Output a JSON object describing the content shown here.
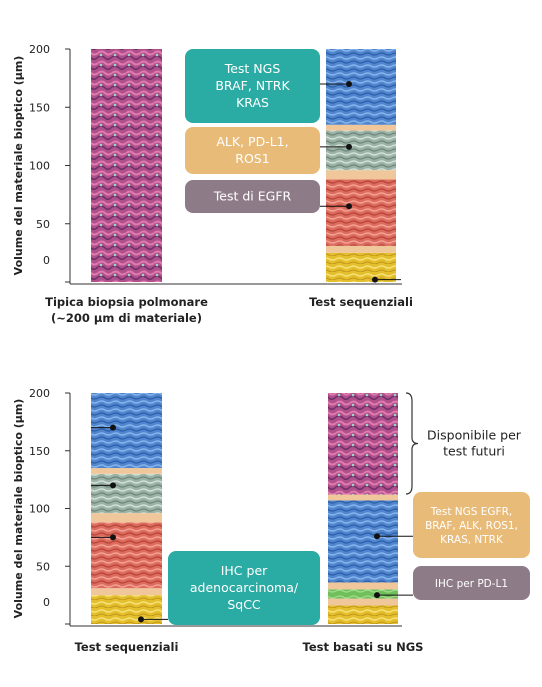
{
  "chart_data": [
    {
      "type": "bar",
      "ylabel": "Volume del materiale bioptico (μm)",
      "ylim": [
        0,
        200
      ],
      "yticks": [
        0,
        50,
        100,
        150,
        200
      ],
      "categories": [
        "Tipica biopsia polmonare\n(~200 μm di materiale)",
        "Test sequenziali"
      ],
      "stacks": [
        {
          "category": "Tipica biopsia polmonare\n(~200 μm di materiale)",
          "segments": [
            {
              "from": 0,
              "to": 200,
              "tissue": "tumor-tissue",
              "color": "#b0508a"
            }
          ]
        },
        {
          "category": "Test sequenziali",
          "segments": [
            {
              "from": 0,
              "to": 25,
              "tissue": "yellow",
              "color": "#e4bf2c"
            },
            {
              "from": 25,
              "to": 31,
              "tissue": "spacer",
              "color": "#f0c79a"
            },
            {
              "from": 31,
              "to": 88,
              "tissue": "red",
              "color": "#dd6b5e"
            },
            {
              "from": 88,
              "to": 96,
              "tissue": "spacer",
              "color": "#f0c79a"
            },
            {
              "from": 96,
              "to": 130,
              "tissue": "gray-green",
              "color": "#9bb2a6"
            },
            {
              "from": 130,
              "to": 135,
              "tissue": "spacer",
              "color": "#f0c79a"
            },
            {
              "from": 135,
              "to": 200,
              "tissue": "blue",
              "color": "#4f86cf"
            }
          ]
        }
      ],
      "callouts": [
        {
          "text": "Test NGS\nBRAF, NTRK\nKRAS",
          "color": "#2aaba3",
          "points_to": 170
        },
        {
          "text": "ALK, PD-L1,\nROS1",
          "color": "#e9bb78",
          "points_to": 116
        },
        {
          "text": "Test di EGFR",
          "color": "#8e7b88",
          "points_to": 65
        },
        {
          "text": "",
          "color": "#222222",
          "points_to": 2
        }
      ]
    },
    {
      "type": "bar",
      "ylabel": "Volume del materiale bioptico (μm)",
      "ylim": [
        0,
        200
      ],
      "yticks": [
        0,
        50,
        100,
        150,
        200
      ],
      "categories": [
        "Test sequenziali",
        "Test basati su NGS"
      ],
      "stacks": [
        {
          "category": "Test sequenziali",
          "segments": [
            {
              "from": 0,
              "to": 25,
              "tissue": "yellow",
              "color": "#e4bf2c"
            },
            {
              "from": 25,
              "to": 31,
              "tissue": "spacer",
              "color": "#f0c79a"
            },
            {
              "from": 31,
              "to": 88,
              "tissue": "red",
              "color": "#dd6b5e"
            },
            {
              "from": 88,
              "to": 96,
              "tissue": "spacer",
              "color": "#f0c79a"
            },
            {
              "from": 96,
              "to": 130,
              "tissue": "gray-green",
              "color": "#9bb2a6"
            },
            {
              "from": 130,
              "to": 135,
              "tissue": "spacer",
              "color": "#f0c79a"
            },
            {
              "from": 135,
              "to": 200,
              "tissue": "blue",
              "color": "#4f86cf"
            }
          ]
        },
        {
          "category": "Test basati su NGS",
          "segments": [
            {
              "from": 0,
              "to": 16,
              "tissue": "yellow",
              "color": "#e4bf2c"
            },
            {
              "from": 16,
              "to": 22,
              "tissue": "spacer",
              "color": "#f0c79a"
            },
            {
              "from": 22,
              "to": 30,
              "tissue": "green",
              "color": "#6fbf5a"
            },
            {
              "from": 30,
              "to": 36,
              "tissue": "spacer",
              "color": "#f0c79a"
            },
            {
              "from": 36,
              "to": 107,
              "tissue": "blue",
              "color": "#4f86cf"
            },
            {
              "from": 107,
              "to": 112,
              "tissue": "spacer",
              "color": "#f0c79a"
            },
            {
              "from": 112,
              "to": 200,
              "tissue": "tumor-tissue",
              "color": "#b0508a"
            }
          ]
        }
      ],
      "callouts": [
        {
          "text": "IHC per\nadenocarcinoma/\nSqCC",
          "color": "#2aaba3",
          "points_to": 4
        },
        {
          "text": "Test NGS  EGFR,\nBRAF, ALK, ROS1,\nKRAS, NTRK",
          "color": "#e9bb78",
          "points_to": 76
        },
        {
          "text": "IHC per PD-L1",
          "color": "#8e7b88",
          "points_to": 25
        },
        {
          "text": "Disponibile per\ntest futuri",
          "color": "#222222",
          "points_to": 156
        }
      ]
    }
  ]
}
